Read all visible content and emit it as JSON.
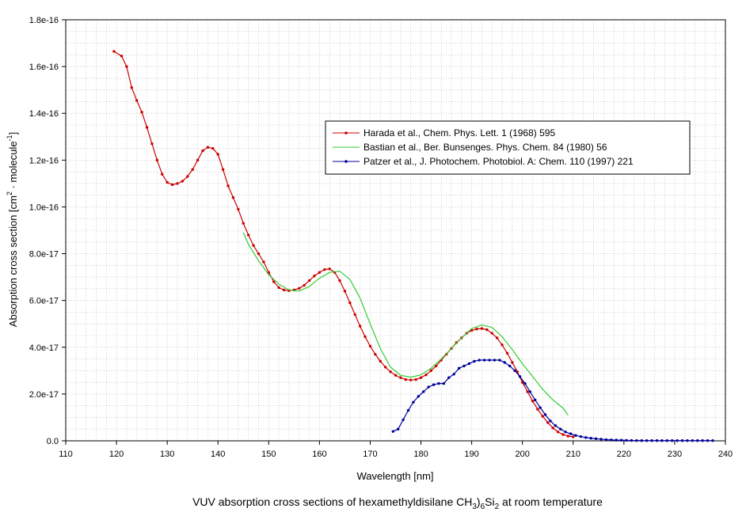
{
  "caption": {
    "prefix": "VUV absorption cross sections of hexamethyldisilane CH",
    "sub1": "3",
    "mid1": ")",
    "sub2": "6",
    "mid2": "Si",
    "sub3": "2",
    "suffix": " at room temperature"
  },
  "chart_data": {
    "type": "line",
    "title": "",
    "xlabel": "Wavelength [nm]",
    "ylabel": {
      "part1": "Absorption cross section [cm",
      "sup1": "2",
      "part2": " · molecule",
      "sup2": "-1",
      "part3": "]"
    },
    "xlim": [
      110,
      240
    ],
    "ylim": [
      0,
      1.8e-16
    ],
    "x_ticks": [
      110,
      120,
      130,
      140,
      150,
      160,
      170,
      180,
      190,
      200,
      210,
      220,
      230,
      240
    ],
    "x_tick_labels": [
      "110",
      "120",
      "130",
      "140",
      "150",
      "160",
      "170",
      "180",
      "190",
      "200",
      "210",
      "220",
      "230",
      "240"
    ],
    "y_ticks": [
      0,
      2e-17,
      4e-17,
      6e-17,
      8e-17,
      1e-16,
      1.2e-16,
      1.4e-16,
      1.6e-16,
      1.8e-16
    ],
    "y_tick_labels": [
      "0.0",
      "2.0e-17",
      "4.0e-17",
      "6.0e-17",
      "8.0e-17",
      "1.0e-16",
      "1.2e-16",
      "1.4e-16",
      "1.6e-16",
      "1.8e-16"
    ],
    "grid": true,
    "legend_position": "upper-right",
    "series": [
      {
        "name": "Harada et al., Chem. Phys. Lett. 1 (1968) 595",
        "color": "#cc0000",
        "marker": "dot",
        "x": [
          119.5,
          121,
          122,
          123,
          124,
          125,
          126,
          127,
          128,
          129,
          130,
          131,
          132,
          133,
          134,
          135,
          136,
          137,
          138,
          139,
          140,
          141,
          142,
          143,
          144,
          145,
          146,
          147,
          148,
          149,
          150,
          151,
          152,
          153,
          154,
          155,
          156,
          157,
          158,
          159,
          160,
          161,
          162,
          163,
          164,
          165,
          166,
          167,
          168,
          169,
          170,
          171,
          172,
          173,
          174,
          175,
          176,
          177,
          178,
          179,
          180,
          181,
          182,
          183,
          184,
          185,
          186,
          187,
          188,
          189,
          190,
          191,
          192,
          193,
          194,
          195,
          196,
          197,
          198,
          199,
          200,
          201,
          202,
          203,
          204,
          205,
          206,
          207,
          208,
          209,
          210
        ],
        "y": [
          1.665e-16,
          1.645e-16,
          1.6e-16,
          1.51e-16,
          1.455e-16,
          1.405e-16,
          1.34e-16,
          1.27e-16,
          1.2e-16,
          1.14e-16,
          1.105e-16,
          1.095e-16,
          1.1e-16,
          1.11e-16,
          1.13e-16,
          1.16e-16,
          1.2e-16,
          1.24e-16,
          1.255e-16,
          1.25e-16,
          1.225e-16,
          1.16e-16,
          1.09e-16,
          1.04e-16,
          9.9e-17,
          9.3e-17,
          8.8e-17,
          8.35e-17,
          8e-17,
          7.65e-17,
          7.2e-17,
          6.8e-17,
          6.55e-17,
          6.45e-17,
          6.42e-17,
          6.45e-17,
          6.52e-17,
          6.65e-17,
          6.85e-17,
          7.05e-17,
          7.2e-17,
          7.32e-17,
          7.35e-17,
          7.2e-17,
          6.85e-17,
          6.4e-17,
          5.9e-17,
          5.4e-17,
          4.9e-17,
          4.45e-17,
          4.05e-17,
          3.7e-17,
          3.4e-17,
          3.15e-17,
          2.95e-17,
          2.8e-17,
          2.7e-17,
          2.62e-17,
          2.6e-17,
          2.62e-17,
          2.7e-17,
          2.82e-17,
          3e-17,
          3.2e-17,
          3.45e-17,
          3.7e-17,
          3.95e-17,
          4.2e-17,
          4.4e-17,
          4.6e-17,
          4.72e-17,
          4.78e-17,
          4.8e-17,
          4.75e-17,
          4.6e-17,
          4.4e-17,
          4.1e-17,
          3.75e-17,
          3.35e-17,
          2.95e-17,
          2.5e-17,
          2.1e-17,
          1.7e-17,
          1.35e-17,
          1.05e-17,
          7.8e-18,
          5.5e-18,
          3.8e-18,
          2.7e-18,
          2e-18,
          1.7e-18
        ]
      },
      {
        "name": "Bastian et al., Ber. Bunsenges. Phys. Chem. 84 (1980) 56",
        "color": "#33cc33",
        "marker": "none",
        "x": [
          145,
          146,
          148,
          150,
          152,
          154,
          156,
          158,
          160,
          162,
          164,
          166,
          168,
          170,
          172,
          174,
          176,
          178,
          180,
          182,
          184,
          186,
          188,
          190,
          192,
          194,
          196,
          198,
          200,
          202,
          204,
          206,
          208,
          209
        ],
        "y": [
          8.9e-17,
          8.4e-17,
          7.7e-17,
          7.1e-17,
          6.7e-17,
          6.45e-17,
          6.4e-17,
          6.6e-17,
          6.95e-17,
          7.2e-17,
          7.25e-17,
          6.9e-17,
          6.1e-17,
          5e-17,
          3.95e-17,
          3.15e-17,
          2.8e-17,
          2.72e-17,
          2.82e-17,
          3.1e-17,
          3.5e-17,
          3.95e-17,
          4.4e-17,
          4.8e-17,
          4.95e-17,
          4.85e-17,
          4.45e-17,
          3.9e-17,
          3.3e-17,
          2.75e-17,
          2.2e-17,
          1.75e-17,
          1.4e-17,
          1.1e-17
        ]
      },
      {
        "name": "Patzer et al., J. Photochem. Photobiol. A: Chem. 110 (1997) 221",
        "color": "#000099",
        "marker": "dot",
        "x": [
          174.5,
          175.5,
          176.5,
          177.5,
          178.5,
          179.5,
          180.5,
          181.5,
          182.5,
          183.5,
          184.5,
          185.5,
          186.5,
          187.5,
          188.5,
          189.5,
          190.5,
          191.5,
          192.5,
          193.5,
          194.5,
          195.5,
          196.5,
          197.5,
          198.5,
          199.5,
          200.5,
          201.5,
          202.5,
          203.5,
          204.5,
          205.5,
          206.5,
          207.5,
          208.5,
          209.5,
          210.5,
          211.5,
          212.5,
          213.5,
          214.5,
          215.5,
          216.5,
          217.5,
          218.5,
          219.5,
          220.5,
          221.5,
          222.5,
          223.5,
          224.5,
          225.5,
          226.5,
          227.5,
          228.5,
          229.5,
          230.5,
          231.5,
          232.5,
          233.5,
          234.5,
          235.5,
          236.5,
          237.5
        ],
        "y": [
          4e-18,
          5e-18,
          9e-18,
          1.3e-17,
          1.65e-17,
          1.9e-17,
          2.1e-17,
          2.3e-17,
          2.4e-17,
          2.45e-17,
          2.45e-17,
          2.7e-17,
          2.85e-17,
          3.1e-17,
          3.2e-17,
          3.3e-17,
          3.4e-17,
          3.45e-17,
          3.45e-17,
          3.45e-17,
          3.45e-17,
          3.45e-17,
          3.35e-17,
          3.2e-17,
          3e-17,
          2.75e-17,
          2.45e-17,
          2.1e-17,
          1.75e-17,
          1.42e-17,
          1.12e-17,
          8.5e-18,
          6.5e-18,
          5e-18,
          3.8e-18,
          3e-18,
          2.3e-18,
          1.8e-18,
          1.4e-18,
          1.1e-18,
          9e-19,
          7e-19,
          5e-19,
          4e-19,
          3e-19,
          2.5e-19,
          2e-19,
          1.5e-19,
          1.2e-19,
          1e-19,
          1e-19,
          1e-19,
          1e-19,
          1e-19,
          1e-19,
          1e-19,
          1e-19,
          1e-19,
          1e-19,
          1e-19,
          1e-19,
          1e-19,
          1e-19,
          1e-19
        ]
      }
    ]
  }
}
